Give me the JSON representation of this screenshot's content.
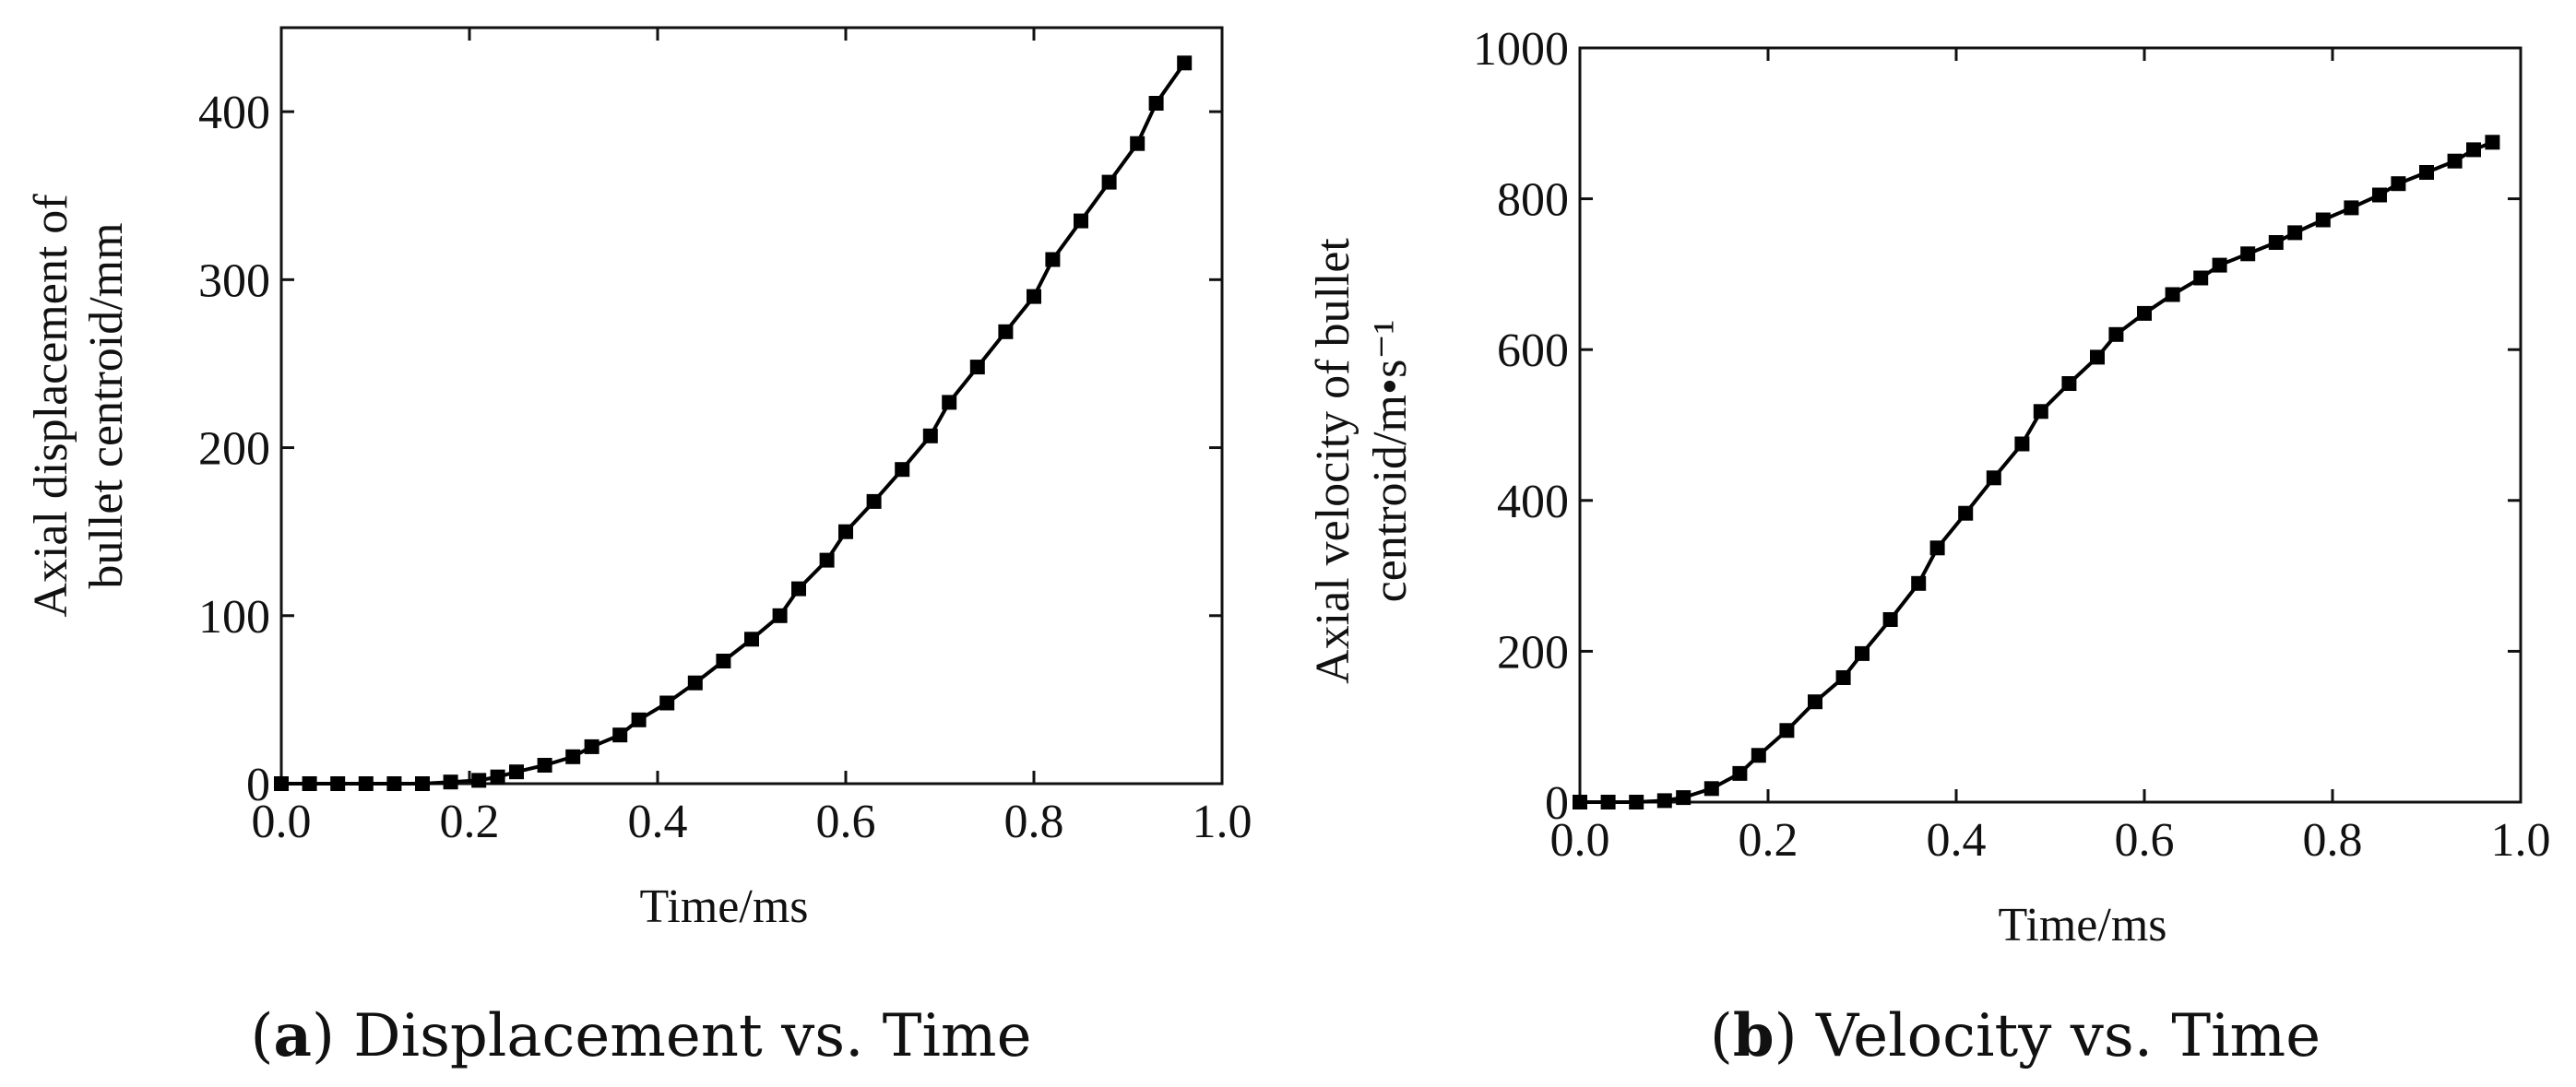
{
  "chart_data": [
    {
      "type": "line",
      "title": "",
      "xlabel": "Time/ms",
      "ylabel_lines": [
        "Axial displacement of",
        "bullet centroid/mm"
      ],
      "caption_letter": "a",
      "caption_text": "Displacement vs. Time",
      "xlim": [
        0.0,
        1.0
      ],
      "ylim": [
        0,
        450
      ],
      "xticks": [
        0.0,
        0.2,
        0.4,
        0.6,
        0.8,
        1.0
      ],
      "xtick_labels": [
        "0.0",
        "0.2",
        "0.4",
        "0.6",
        "0.8",
        "1.0"
      ],
      "yticks": [
        0,
        100,
        200,
        300,
        400
      ],
      "ytick_labels": [
        "0",
        "100",
        "200",
        "300",
        "400"
      ],
      "series": [
        {
          "name": "Displacement",
          "x": [
            0.0,
            0.03,
            0.06,
            0.09,
            0.12,
            0.15,
            0.18,
            0.21,
            0.23,
            0.25,
            0.28,
            0.31,
            0.33,
            0.36,
            0.38,
            0.41,
            0.44,
            0.47,
            0.5,
            0.53,
            0.55,
            0.58,
            0.6,
            0.63,
            0.66,
            0.69,
            0.71,
            0.74,
            0.77,
            0.8,
            0.82,
            0.85,
            0.88,
            0.91,
            0.93,
            0.96
          ],
          "y": [
            0,
            0,
            0,
            0,
            0,
            0,
            1,
            2,
            4,
            7,
            11,
            16,
            22,
            29,
            38,
            48,
            60,
            73,
            86,
            100,
            116,
            133,
            150,
            168,
            187,
            207,
            227,
            248,
            269,
            290,
            312,
            335,
            358,
            381,
            405,
            429
          ]
        }
      ]
    },
    {
      "type": "line",
      "title": "",
      "xlabel": "Time/ms",
      "ylabel_lines": [
        "Axial velocity of bullet",
        "centroid/m•s⁻¹"
      ],
      "caption_letter": "b",
      "caption_text": "Velocity vs. Time",
      "xlim": [
        0.0,
        1.0
      ],
      "ylim": [
        0,
        1000
      ],
      "xticks": [
        0.0,
        0.2,
        0.4,
        0.6,
        0.8,
        1.0
      ],
      "xtick_labels": [
        "0.0",
        "0.2",
        "0.4",
        "0.6",
        "0.8",
        "1.0"
      ],
      "yticks": [
        0,
        200,
        400,
        600,
        800,
        1000
      ],
      "ytick_labels": [
        "0",
        "200",
        "400",
        "600",
        "800",
        "1000"
      ],
      "series": [
        {
          "name": "Velocity",
          "x": [
            0.0,
            0.03,
            0.06,
            0.09,
            0.11,
            0.14,
            0.17,
            0.19,
            0.22,
            0.25,
            0.28,
            0.3,
            0.33,
            0.36,
            0.38,
            0.41,
            0.44,
            0.47,
            0.49,
            0.52,
            0.55,
            0.57,
            0.6,
            0.63,
            0.66,
            0.68,
            0.71,
            0.74,
            0.76,
            0.79,
            0.82,
            0.85,
            0.87,
            0.9,
            0.93,
            0.95,
            0.97
          ],
          "y": [
            0,
            0,
            0,
            2,
            6,
            18,
            38,
            62,
            95,
            133,
            165,
            197,
            242,
            290,
            337,
            383,
            430,
            475,
            518,
            555,
            590,
            620,
            648,
            673,
            695,
            712,
            727,
            742,
            755,
            772,
            788,
            805,
            820,
            835,
            850,
            865,
            875
          ]
        }
      ]
    }
  ]
}
